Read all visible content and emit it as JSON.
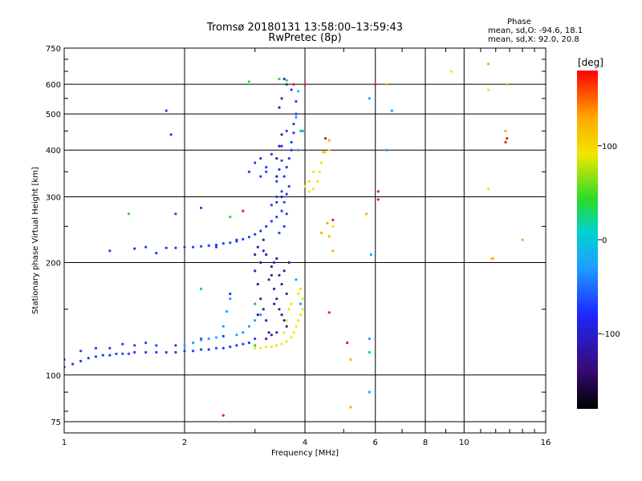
{
  "header": {
    "title_line1": "Tromsø 20180131 13:58:00–13:59:43",
    "title_line2": "RwPretec (8p)"
  },
  "phase_stats": {
    "heading": "Phase",
    "line_o": "mean, sd,O: -94.6, 18.1",
    "line_x": "mean, sd,X:  92.0, 20.8"
  },
  "colorbar": {
    "unit_label": "[deg]",
    "ticks": [
      "100",
      "0",
      "-100"
    ],
    "tick_values": [
      100,
      0,
      -100
    ],
    "range": [
      -180,
      180
    ]
  },
  "chart_data": {
    "type": "scatter",
    "title": "Tromsø 20180131 13:58:00–13:59:43",
    "subtitle": "RwPretec (8p)",
    "xlabel": "Frequency [MHz]",
    "ylabel": "Stationary phase Virtual Height [km]",
    "x_scale": "log",
    "y_scale": "log",
    "xlim": [
      1,
      16
    ],
    "ylim": [
      70,
      750
    ],
    "x_ticks": [
      1,
      2,
      4,
      6,
      8,
      10,
      16
    ],
    "x_tick_labels": [
      "1",
      "2",
      "4",
      "6",
      "8",
      "10",
      "16"
    ],
    "y_ticks": [
      75,
      100,
      200,
      300,
      400,
      500,
      600,
      750
    ],
    "y_tick_labels": [
      "75",
      "100",
      "200",
      "300",
      "400",
      "500",
      "600",
      "750"
    ],
    "grid": true,
    "color_mapping": "phase in degrees (colorbar)",
    "colors": {
      "blue": "#1e3cff",
      "indigo": "#3a1ea8",
      "cyan": "#1ea0ff",
      "yellow": "#f0e600",
      "orange": "#ffaa00",
      "red": "#e01e1e",
      "green": "#28dc28",
      "teal": "#00c8c8"
    },
    "series": [
      {
        "color": "blue",
        "points": [
          [
            1.0,
            105
          ],
          [
            1.05,
            107
          ],
          [
            1.1,
            109
          ],
          [
            1.15,
            111
          ],
          [
            1.2,
            112
          ],
          [
            1.25,
            113
          ],
          [
            1.3,
            113
          ],
          [
            1.35,
            114
          ],
          [
            1.4,
            114
          ],
          [
            1.45,
            114
          ],
          [
            1.5,
            115
          ],
          [
            1.6,
            115
          ],
          [
            1.7,
            115
          ],
          [
            1.8,
            115
          ],
          [
            1.9,
            115
          ],
          [
            2.0,
            116
          ],
          [
            2.1,
            116
          ],
          [
            2.2,
            117
          ],
          [
            2.3,
            117
          ],
          [
            2.4,
            118
          ],
          [
            2.5,
            118
          ],
          [
            2.6,
            119
          ],
          [
            2.7,
            120
          ],
          [
            2.8,
            121
          ],
          [
            2.9,
            122
          ],
          [
            3.0,
            125
          ],
          [
            1.0,
            110
          ],
          [
            1.1,
            116
          ],
          [
            1.2,
            118
          ],
          [
            1.3,
            118
          ],
          [
            1.4,
            121
          ],
          [
            1.5,
            120
          ],
          [
            1.6,
            122
          ],
          [
            1.7,
            120
          ],
          [
            1.9,
            120
          ],
          [
            2.2,
            125
          ],
          [
            2.5,
            127
          ],
          [
            1.7,
            212
          ],
          [
            1.5,
            218
          ],
          [
            1.6,
            220
          ],
          [
            1.8,
            219
          ],
          [
            1.9,
            219
          ],
          [
            2.0,
            220
          ],
          [
            2.1,
            220
          ],
          [
            2.2,
            221
          ],
          [
            2.3,
            222
          ],
          [
            2.4,
            223
          ],
          [
            2.5,
            225
          ],
          [
            2.6,
            226
          ],
          [
            2.7,
            228
          ],
          [
            2.8,
            231
          ],
          [
            2.9,
            234
          ],
          [
            3.0,
            238
          ],
          [
            3.1,
            243
          ],
          [
            3.2,
            250
          ],
          [
            3.3,
            258
          ],
          [
            3.4,
            265
          ],
          [
            3.5,
            275
          ],
          [
            3.55,
            290
          ],
          [
            3.6,
            305
          ],
          [
            3.65,
            320
          ],
          [
            3.55,
            340
          ],
          [
            3.6,
            360
          ],
          [
            3.65,
            380
          ],
          [
            3.7,
            400
          ],
          [
            3.7,
            420
          ],
          [
            3.75,
            445
          ],
          [
            3.75,
            470
          ],
          [
            3.8,
            500
          ],
          [
            3.8,
            540
          ],
          [
            3.7,
            580
          ],
          [
            3.55,
            620
          ],
          [
            3.4,
            330
          ],
          [
            3.45,
            355
          ],
          [
            3.5,
            375
          ],
          [
            3.5,
            410
          ],
          [
            3.6,
            450
          ],
          [
            3.3,
            390
          ],
          [
            3.2,
            360
          ],
          [
            3.1,
            340
          ],
          [
            3.0,
            370
          ],
          [
            3.1,
            380
          ],
          [
            2.9,
            350
          ],
          [
            1.3,
            215
          ],
          [
            2.4,
            220
          ],
          [
            2.7,
            230
          ],
          [
            3.4,
            300
          ],
          [
            3.5,
            310
          ],
          [
            3.6,
            270
          ],
          [
            3.55,
            250
          ],
          [
            3.45,
            240
          ],
          [
            3.3,
            285
          ],
          [
            3.4,
            290
          ],
          [
            1.9,
            270
          ],
          [
            2.2,
            280
          ],
          [
            1.85,
            440
          ],
          [
            1.8,
            510
          ],
          [
            3.2,
            350
          ],
          [
            2.6,
            165
          ]
        ]
      },
      {
        "color": "indigo",
        "points": [
          [
            3.0,
            190
          ],
          [
            3.05,
            175
          ],
          [
            3.1,
            160
          ],
          [
            3.15,
            150
          ],
          [
            3.2,
            140
          ],
          [
            3.25,
            130
          ],
          [
            3.1,
            200
          ],
          [
            3.2,
            210
          ],
          [
            3.3,
            185
          ],
          [
            3.35,
            170
          ],
          [
            3.4,
            160
          ],
          [
            3.45,
            150
          ],
          [
            3.5,
            145
          ],
          [
            3.55,
            140
          ],
          [
            3.6,
            135
          ],
          [
            3.3,
            195
          ],
          [
            3.35,
            200
          ],
          [
            3.4,
            205
          ],
          [
            3.5,
            175
          ],
          [
            3.6,
            165
          ],
          [
            3.0,
            210
          ],
          [
            3.05,
            220
          ],
          [
            3.15,
            230
          ],
          [
            3.25,
            180
          ],
          [
            3.35,
            155
          ],
          [
            3.45,
            185
          ],
          [
            3.55,
            190
          ],
          [
            3.65,
            200
          ],
          [
            3.2,
            125
          ],
          [
            3.3,
            128
          ],
          [
            3.4,
            130
          ],
          [
            3.15,
            215
          ],
          [
            3.05,
            145
          ],
          [
            3.4,
            380
          ],
          [
            3.45,
            410
          ],
          [
            3.5,
            440
          ],
          [
            3.4,
            340
          ],
          [
            3.5,
            300
          ],
          [
            3.6,
            600
          ],
          [
            3.5,
            550
          ],
          [
            3.45,
            520
          ]
        ]
      },
      {
        "color": "cyan",
        "points": [
          [
            2.0,
            120
          ],
          [
            2.1,
            122
          ],
          [
            2.2,
            124
          ],
          [
            2.3,
            125
          ],
          [
            2.4,
            126
          ],
          [
            2.5,
            135
          ],
          [
            2.55,
            148
          ],
          [
            2.6,
            160
          ],
          [
            2.7,
            128
          ],
          [
            2.8,
            130
          ],
          [
            2.9,
            135
          ],
          [
            3.0,
            140
          ],
          [
            3.1,
            145
          ],
          [
            3.0,
            155
          ],
          [
            3.9,
            155
          ],
          [
            3.8,
            180
          ],
          [
            3.85,
            400
          ],
          [
            3.8,
            490
          ],
          [
            3.95,
            450
          ],
          [
            5.8,
            550
          ],
          [
            5.8,
            125
          ],
          [
            5.8,
            90
          ],
          [
            6.4,
            400
          ],
          [
            5.85,
            210
          ],
          [
            6.6,
            510
          ]
        ]
      },
      {
        "color": "yellow",
        "points": [
          [
            3.0,
            118
          ],
          [
            3.1,
            118
          ],
          [
            3.2,
            119
          ],
          [
            3.3,
            119
          ],
          [
            3.4,
            120
          ],
          [
            3.5,
            121
          ],
          [
            3.6,
            123
          ],
          [
            3.7,
            126
          ],
          [
            3.75,
            130
          ],
          [
            3.8,
            135
          ],
          [
            3.85,
            140
          ],
          [
            3.9,
            145
          ],
          [
            3.95,
            150
          ],
          [
            3.95,
            160
          ],
          [
            3.9,
            170
          ],
          [
            3.85,
            165
          ],
          [
            3.7,
            155
          ],
          [
            3.6,
            140
          ],
          [
            3.55,
            130
          ],
          [
            4.0,
            320
          ],
          [
            4.1,
            310
          ],
          [
            4.2,
            315
          ],
          [
            4.3,
            330
          ],
          [
            4.35,
            350
          ],
          [
            4.4,
            370
          ],
          [
            4.5,
            395
          ],
          [
            4.6,
            400
          ],
          [
            4.2,
            350
          ],
          [
            4.1,
            330
          ],
          [
            4.7,
            250
          ],
          [
            11.5,
            580
          ],
          [
            11.5,
            315
          ],
          [
            11.7,
            205
          ],
          [
            9.3,
            650
          ],
          [
            3.65,
            150
          ]
        ]
      },
      {
        "color": "orange",
        "points": [
          [
            4.6,
            425
          ],
          [
            4.55,
            255
          ],
          [
            4.6,
            235
          ],
          [
            4.4,
            240
          ],
          [
            4.7,
            215
          ],
          [
            5.2,
            110
          ],
          [
            5.2,
            82
          ],
          [
            5.7,
            270
          ],
          [
            6.4,
            600
          ],
          [
            11.5,
            680
          ],
          [
            11.8,
            205
          ],
          [
            14.0,
            230
          ],
          [
            12.8,
            600
          ],
          [
            12.7,
            450
          ],
          [
            4.45,
            395
          ]
        ]
      },
      {
        "color": "red",
        "points": [
          [
            4.0,
            600
          ],
          [
            3.75,
            600
          ],
          [
            4.5,
            430
          ],
          [
            4.7,
            260
          ],
          [
            5.1,
            122
          ],
          [
            4.6,
            147
          ],
          [
            6.1,
            310
          ],
          [
            6.1,
            295
          ],
          [
            2.5,
            78
          ],
          [
            2.8,
            275
          ],
          [
            12.8,
            430
          ],
          [
            12.7,
            420
          ],
          [
            6.0,
            600
          ]
        ]
      },
      {
        "color": "green",
        "points": [
          [
            3.45,
            620
          ],
          [
            2.9,
            610
          ],
          [
            1.45,
            270
          ],
          [
            2.6,
            265
          ],
          [
            3.0,
            120
          ],
          [
            3.6,
            615
          ],
          [
            3.9,
            450
          ]
        ]
      },
      {
        "color": "teal",
        "points": [
          [
            5.8,
            115
          ],
          [
            2.2,
            170
          ],
          [
            3.85,
            575
          ]
        ]
      }
    ]
  }
}
